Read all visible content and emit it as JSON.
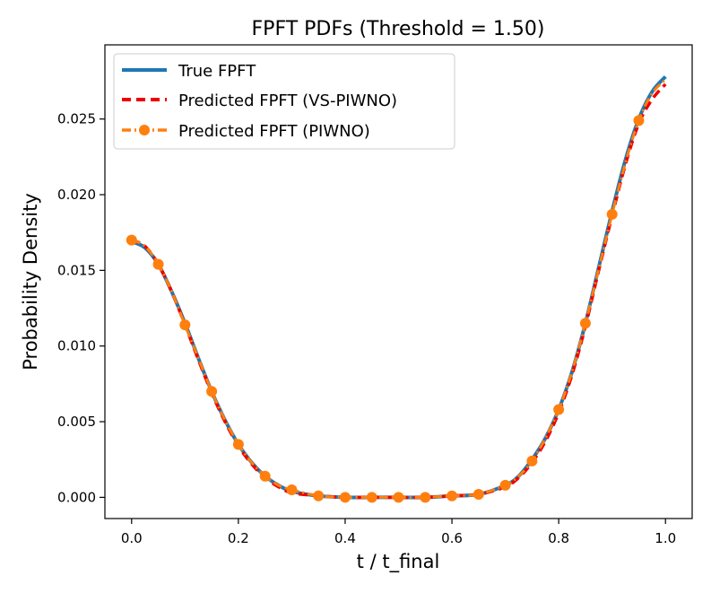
{
  "chart_data": {
    "type": "line",
    "title": "FPFT PDFs (Threshold = 1.50)",
    "xlabel": "t / t_final",
    "ylabel": "Probability Density",
    "xlim": [
      -0.05,
      1.05
    ],
    "ylim": [
      -0.0014,
      0.0299
    ],
    "xticks": [
      {
        "value": 0.0,
        "label": "0.0"
      },
      {
        "value": 0.2,
        "label": "0.2"
      },
      {
        "value": 0.4,
        "label": "0.4"
      },
      {
        "value": 0.6,
        "label": "0.6"
      },
      {
        "value": 0.8,
        "label": "0.8"
      },
      {
        "value": 1.0,
        "label": "1.0"
      }
    ],
    "yticks": [
      {
        "value": 0.0,
        "label": "0.000"
      },
      {
        "value": 0.005,
        "label": "0.005"
      },
      {
        "value": 0.01,
        "label": "0.010"
      },
      {
        "value": 0.015,
        "label": "0.015"
      },
      {
        "value": 0.02,
        "label": "0.020"
      },
      {
        "value": 0.025,
        "label": "0.025"
      }
    ],
    "grid": false,
    "legend_position": "top-left",
    "series": [
      {
        "name": "True FPFT",
        "color": "#1f77b4",
        "style": "solid",
        "x": [
          0.0,
          0.025,
          0.05,
          0.075,
          0.1,
          0.125,
          0.15,
          0.175,
          0.2,
          0.225,
          0.25,
          0.275,
          0.3,
          0.35,
          0.4,
          0.45,
          0.5,
          0.55,
          0.6,
          0.65,
          0.7,
          0.725,
          0.75,
          0.775,
          0.8,
          0.825,
          0.85,
          0.875,
          0.9,
          0.925,
          0.95,
          0.975,
          1.0
        ],
        "y": [
          0.0169,
          0.0165,
          0.0154,
          0.0136,
          0.0115,
          0.0092,
          0.007,
          0.0051,
          0.0035,
          0.0023,
          0.0014,
          0.0008,
          0.0004,
          0.0001,
          0.0,
          0.0,
          0.0,
          0.0,
          0.0001,
          0.0002,
          0.0008,
          0.0014,
          0.0025,
          0.0039,
          0.0058,
          0.0083,
          0.0115,
          0.0152,
          0.0189,
          0.0223,
          0.025,
          0.0268,
          0.0278
        ]
      },
      {
        "name": "Predicted FPFT (VS-PIWNO)",
        "color": "#ee0000",
        "style": "dashed",
        "x": [
          0.0,
          0.025,
          0.05,
          0.075,
          0.1,
          0.125,
          0.15,
          0.175,
          0.2,
          0.225,
          0.25,
          0.275,
          0.3,
          0.35,
          0.4,
          0.45,
          0.5,
          0.55,
          0.6,
          0.65,
          0.7,
          0.725,
          0.75,
          0.775,
          0.8,
          0.825,
          0.85,
          0.875,
          0.9,
          0.925,
          0.95,
          0.975,
          1.0
        ],
        "y": [
          0.017,
          0.0166,
          0.0154,
          0.0136,
          0.0114,
          0.0091,
          0.0069,
          0.005,
          0.0034,
          0.0022,
          0.0013,
          0.0007,
          0.0003,
          0.0001,
          0.0,
          0.0,
          0.0,
          0.0,
          0.0001,
          0.0002,
          0.0007,
          0.0013,
          0.0023,
          0.0037,
          0.0056,
          0.0081,
          0.0113,
          0.015,
          0.0186,
          0.022,
          0.0247,
          0.0263,
          0.0273
        ]
      },
      {
        "name": "Predicted FPFT (PIWNO)",
        "color": "#ff7f0e",
        "style": "dashdot-markers",
        "x": [
          0.0,
          0.025,
          0.05,
          0.075,
          0.1,
          0.125,
          0.15,
          0.175,
          0.2,
          0.225,
          0.25,
          0.275,
          0.3,
          0.35,
          0.4,
          0.45,
          0.5,
          0.55,
          0.6,
          0.65,
          0.7,
          0.725,
          0.75,
          0.775,
          0.8,
          0.825,
          0.85,
          0.875,
          0.9,
          0.925,
          0.95,
          0.975,
          1.0
        ],
        "y": [
          0.017,
          0.0166,
          0.0154,
          0.0136,
          0.0114,
          0.0092,
          0.007,
          0.0051,
          0.0035,
          0.0023,
          0.0014,
          0.0008,
          0.0005,
          0.0001,
          0.0,
          0.0,
          0.0,
          0.0,
          0.0001,
          0.0002,
          0.0008,
          0.0014,
          0.0024,
          0.0039,
          0.0058,
          0.0083,
          0.0115,
          0.0151,
          0.0187,
          0.0221,
          0.0249,
          0.0267,
          0.0276
        ],
        "markers_x": [
          0.0,
          0.05,
          0.1,
          0.15,
          0.2,
          0.25,
          0.3,
          0.35,
          0.4,
          0.45,
          0.5,
          0.55,
          0.6,
          0.65,
          0.7,
          0.75,
          0.8,
          0.85,
          0.9,
          0.95
        ],
        "markers_y": [
          0.017,
          0.0154,
          0.0114,
          0.007,
          0.0035,
          0.0014,
          0.0005,
          0.0001,
          0.0,
          0.0,
          0.0,
          0.0,
          0.0001,
          0.0002,
          0.0008,
          0.0024,
          0.0058,
          0.0115,
          0.0187,
          0.0249
        ]
      }
    ]
  }
}
